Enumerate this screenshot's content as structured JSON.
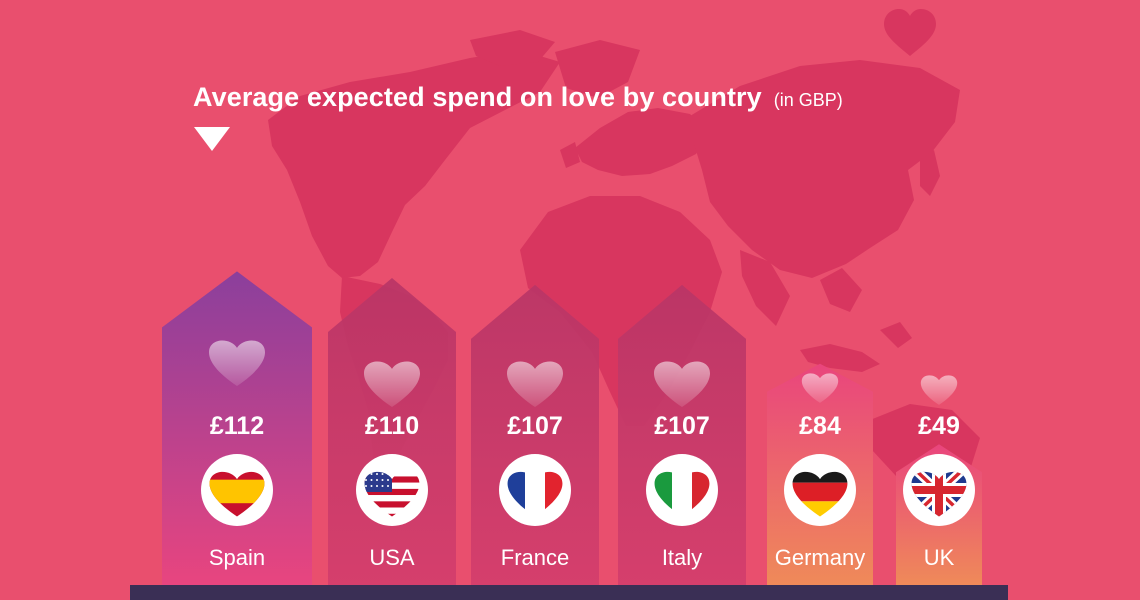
{
  "chart_data": {
    "type": "bar",
    "title": "Average expected spend on love by country",
    "unit_note": "(in GBP)",
    "currency_symbol": "£",
    "categories": [
      "Spain",
      "USA",
      "France",
      "Italy",
      "Germany",
      "UK"
    ],
    "values": [
      112,
      110,
      107,
      107,
      84,
      49
    ],
    "value_labels": [
      "£112",
      "£110",
      "£107",
      "£107",
      "£84",
      "£49"
    ],
    "flag_icons": [
      "spain-flag-heart-icon",
      "usa-flag-heart-icon",
      "france-flag-heart-icon",
      "italy-flag-heart-icon",
      "germany-flag-heart-icon",
      "uk-flag-heart-icon"
    ],
    "legend": "none",
    "grid": false
  },
  "colors": {
    "background": "#e94f6e",
    "map": "#d8365f",
    "base_bar": "#3a2f55",
    "spain_gradient": [
      "#8b3f9c",
      "#e8457f"
    ],
    "mid_bars": "#c93a63",
    "orange_gradient": [
      "#e9457d",
      "#ef8a59"
    ]
  }
}
